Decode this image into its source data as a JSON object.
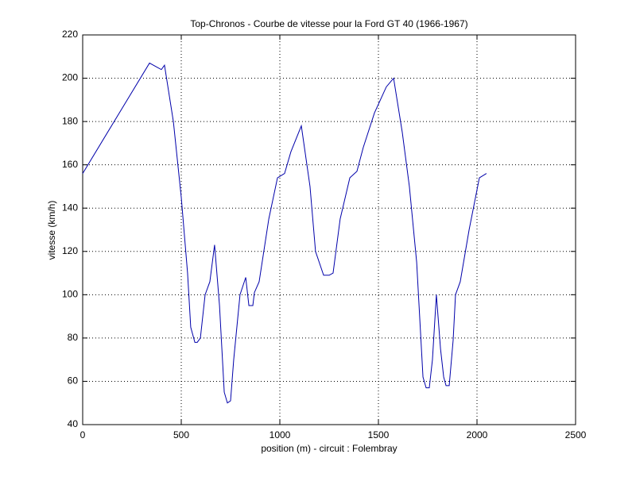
{
  "chart_data": {
    "type": "line",
    "title": "Top-Chronos - Courbe de vitesse pour la Ford GT 40 (1966-1967)",
    "xlabel": "position (m) - circuit : Folembray",
    "ylabel": "vitesse (km/h)",
    "x": [
      0,
      339,
      379,
      399,
      415,
      460,
      500,
      532,
      548,
      569,
      581,
      597,
      621,
      645,
      669,
      694,
      718,
      734,
      750,
      766,
      798,
      827,
      843,
      863,
      871,
      895,
      944,
      988,
      1024,
      1056,
      1109,
      1153,
      1181,
      1222,
      1250,
      1270,
      1306,
      1355,
      1391,
      1423,
      1480,
      1540,
      1577,
      1621,
      1657,
      1694,
      1726,
      1742,
      1758,
      1774,
      1794,
      1815,
      1831,
      1843,
      1859,
      1879,
      1891,
      1915,
      1960,
      2012,
      2048
    ],
    "series": [
      {
        "name": "vitesse",
        "color": "#0000aa",
        "values": [
          156,
          207,
          205,
          204,
          206,
          180,
          145,
          110,
          85,
          78,
          78,
          80,
          100,
          106,
          123,
          95,
          55,
          50,
          51,
          70,
          100,
          108,
          95,
          95,
          101,
          106,
          135,
          154,
          156,
          166,
          178,
          150,
          120,
          109,
          109,
          110,
          135,
          154,
          157,
          168,
          184,
          196,
          200,
          175,
          150,
          115,
          62,
          57,
          57,
          70,
          100,
          75,
          62,
          58,
          58,
          79,
          100,
          106,
          130,
          154,
          156
        ]
      }
    ],
    "xlim": [
      0,
      2500
    ],
    "xticks": [
      0,
      500,
      1000,
      1500,
      2000,
      2500
    ],
    "ylim": [
      40,
      220
    ],
    "yticks": [
      40,
      60,
      80,
      100,
      120,
      140,
      160,
      180,
      200,
      220
    ],
    "grid": true
  }
}
